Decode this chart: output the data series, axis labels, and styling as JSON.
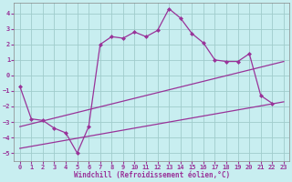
{
  "xlabel": "Windchill (Refroidissement éolien,°C)",
  "background_color": "#c8eef0",
  "grid_color": "#a0cccc",
  "line_color": "#993399",
  "xlim": [
    -0.5,
    23.5
  ],
  "ylim": [
    -5.5,
    4.7
  ],
  "xticks": [
    0,
    1,
    2,
    3,
    4,
    5,
    6,
    7,
    8,
    9,
    10,
    11,
    12,
    13,
    14,
    15,
    16,
    17,
    18,
    19,
    20,
    21,
    22,
    23
  ],
  "yticks": [
    -5,
    -4,
    -3,
    -2,
    -1,
    0,
    1,
    2,
    3,
    4
  ],
  "main_x": [
    0,
    1,
    2,
    3,
    4,
    5,
    6,
    7,
    8,
    9,
    10,
    11,
    12,
    13,
    14,
    15,
    16,
    17,
    18,
    19,
    20,
    21,
    22
  ],
  "main_y": [
    -0.7,
    -2.8,
    -2.9,
    -3.4,
    -3.7,
    -5.0,
    -3.3,
    2.0,
    2.5,
    2.4,
    2.8,
    2.5,
    2.9,
    4.3,
    3.7,
    2.7,
    2.1,
    1.0,
    0.9,
    0.9,
    1.4,
    -1.3,
    -1.8
  ],
  "trend1_x": [
    0,
    23
  ],
  "trend1_y": [
    -3.3,
    0.9
  ],
  "trend2_x": [
    0,
    23
  ],
  "trend2_y": [
    -4.7,
    -1.7
  ]
}
